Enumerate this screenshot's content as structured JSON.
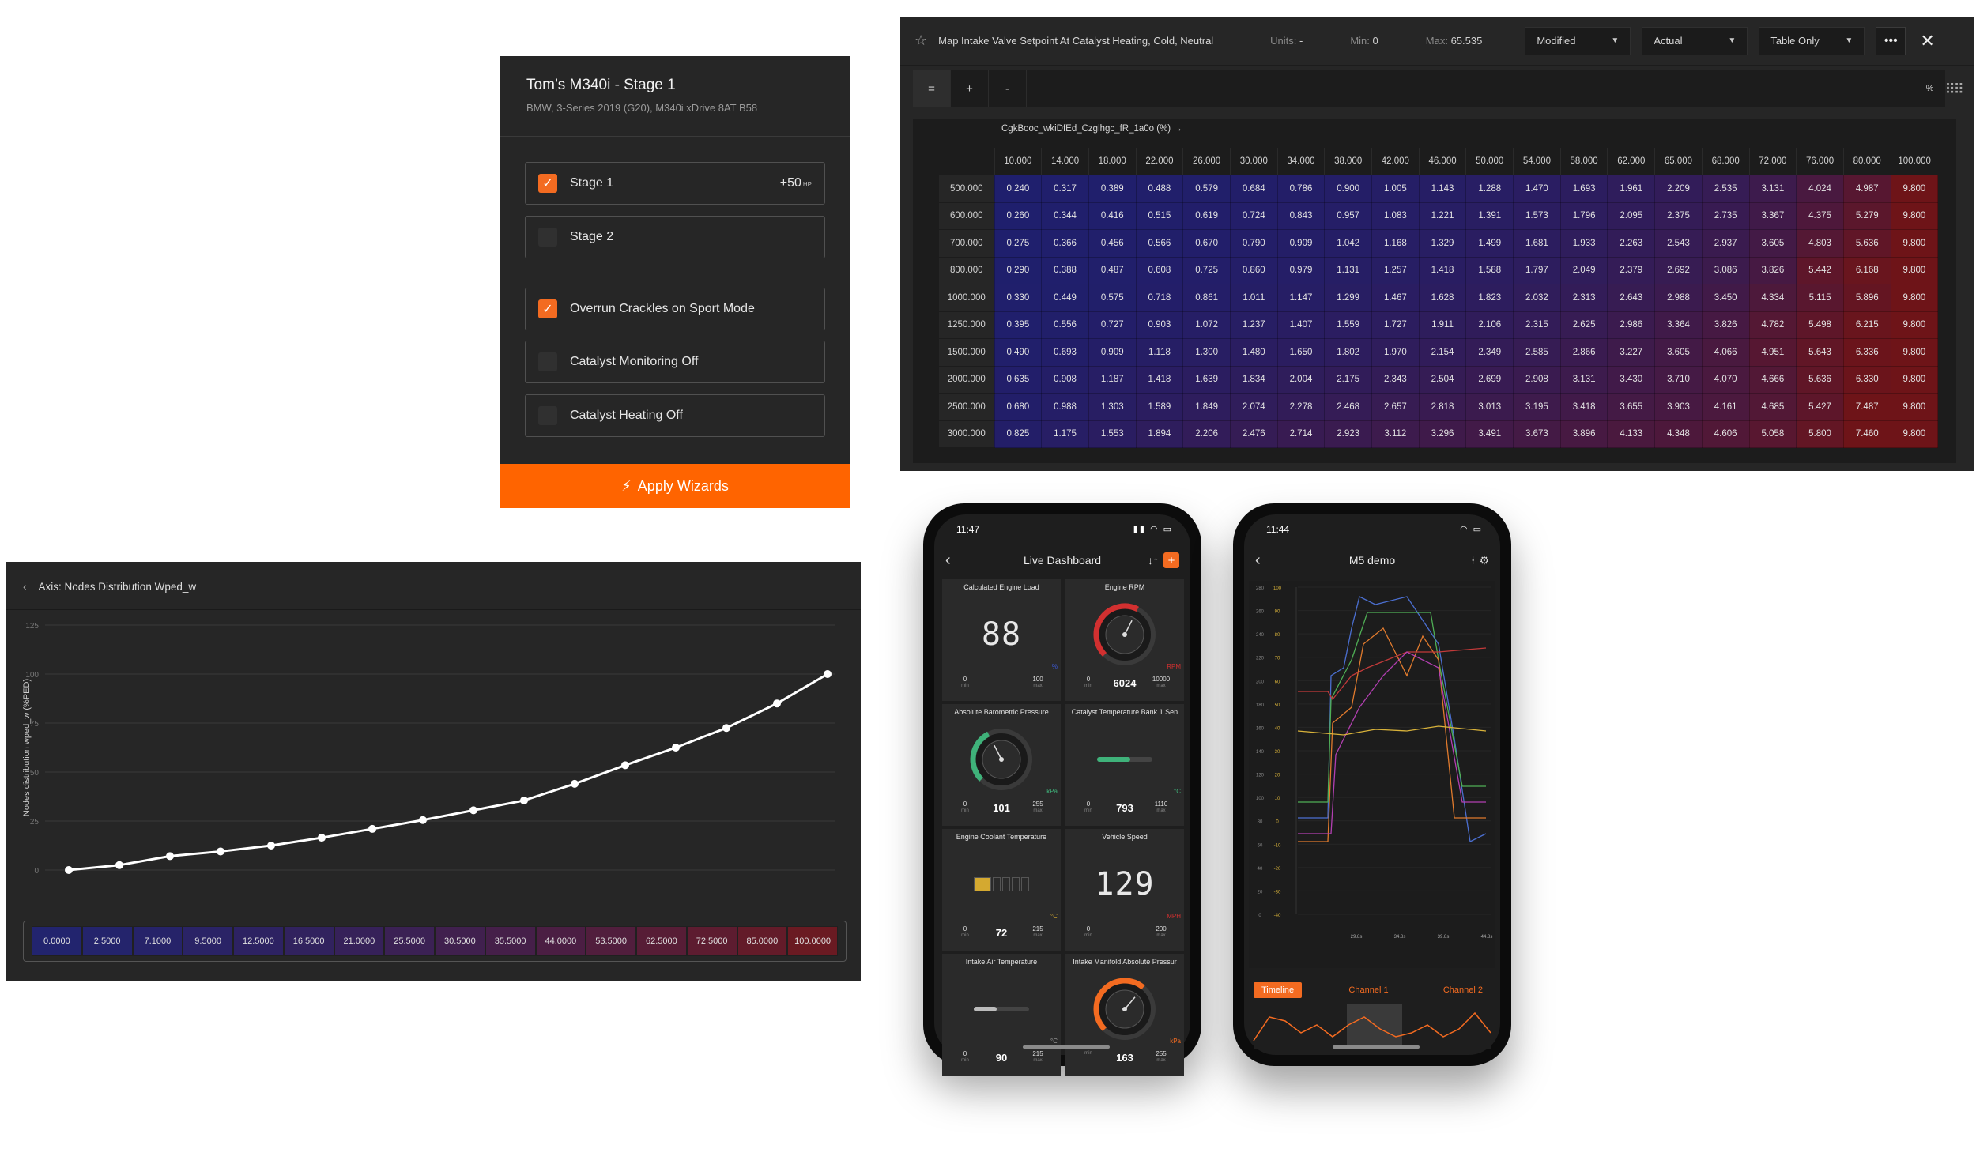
{
  "wizard": {
    "title": "Tom’s M340i - Stage 1",
    "subtitle": "BMW, 3-Series 2019 (G20), M340i xDrive 8AT B58",
    "options": [
      {
        "label": "Stage 1",
        "checked": true,
        "badge": "+50",
        "badge_unit": "HP"
      },
      {
        "label": "Stage 2",
        "checked": false
      },
      {
        "label": "Overrun Crackles on Sport Mode",
        "checked": true
      },
      {
        "label": "Catalyst Monitoring Off",
        "checked": false
      },
      {
        "label": "Catalyst Heating Off",
        "checked": false
      }
    ],
    "apply_label": "Apply Wizards",
    "accent": "#ff6400"
  },
  "map": {
    "title": "Map Intake Valve Setpoint At Catalyst Heating, Cold, Neutral",
    "units_label": "Units:",
    "units_value": "-",
    "min_label": "Min:",
    "min_value": "0",
    "max_label": "Max:",
    "max_value": "65.535",
    "dropdowns": [
      "Modified",
      "Actual",
      "Table Only"
    ],
    "tools": [
      "=",
      "+",
      "-"
    ],
    "pct_tool": "%",
    "axis_name": "CgkBooc_wkiDfEd_Czglhgc_fR_1a0o (%) →",
    "columns": [
      "10.000",
      "14.000",
      "18.000",
      "22.000",
      "26.000",
      "30.000",
      "34.000",
      "38.000",
      "42.000",
      "46.000",
      "50.000",
      "54.000",
      "58.000",
      "62.000",
      "65.000",
      "68.000",
      "72.000",
      "76.000",
      "80.000",
      "100.000"
    ],
    "rows": [
      {
        "label": "500.000",
        "values": [
          "0.240",
          "0.317",
          "0.389",
          "0.488",
          "0.579",
          "0.684",
          "0.786",
          "0.900",
          "1.005",
          "1.143",
          "1.288",
          "1.470",
          "1.693",
          "1.961",
          "2.209",
          "2.535",
          "3.131",
          "4.024",
          "4.987",
          "9.800"
        ]
      },
      {
        "label": "600.000",
        "values": [
          "0.260",
          "0.344",
          "0.416",
          "0.515",
          "0.619",
          "0.724",
          "0.843",
          "0.957",
          "1.083",
          "1.221",
          "1.391",
          "1.573",
          "1.796",
          "2.095",
          "2.375",
          "2.735",
          "3.367",
          "4.375",
          "5.279",
          "9.800"
        ]
      },
      {
        "label": "700.000",
        "values": [
          "0.275",
          "0.366",
          "0.456",
          "0.566",
          "0.670",
          "0.790",
          "0.909",
          "1.042",
          "1.168",
          "1.329",
          "1.499",
          "1.681",
          "1.933",
          "2.263",
          "2.543",
          "2.937",
          "3.605",
          "4.803",
          "5.636",
          "9.800"
        ]
      },
      {
        "label": "800.000",
        "values": [
          "0.290",
          "0.388",
          "0.487",
          "0.608",
          "0.725",
          "0.860",
          "0.979",
          "1.131",
          "1.257",
          "1.418",
          "1.588",
          "1.797",
          "2.049",
          "2.379",
          "2.692",
          "3.086",
          "3.826",
          "5.442",
          "6.168",
          "9.800"
        ]
      },
      {
        "label": "1000.000",
        "values": [
          "0.330",
          "0.449",
          "0.575",
          "0.718",
          "0.861",
          "1.011",
          "1.147",
          "1.299",
          "1.467",
          "1.628",
          "1.823",
          "2.032",
          "2.313",
          "2.643",
          "2.988",
          "3.450",
          "4.334",
          "5.115",
          "5.896",
          "9.800"
        ]
      },
      {
        "label": "1250.000",
        "values": [
          "0.395",
          "0.556",
          "0.727",
          "0.903",
          "1.072",
          "1.237",
          "1.407",
          "1.559",
          "1.727",
          "1.911",
          "2.106",
          "2.315",
          "2.625",
          "2.986",
          "3.364",
          "3.826",
          "4.782",
          "5.498",
          "6.215",
          "9.800"
        ]
      },
      {
        "label": "1500.000",
        "values": [
          "0.490",
          "0.693",
          "0.909",
          "1.118",
          "1.300",
          "1.480",
          "1.650",
          "1.802",
          "1.970",
          "2.154",
          "2.349",
          "2.585",
          "2.866",
          "3.227",
          "3.605",
          "4.066",
          "4.951",
          "5.643",
          "6.336",
          "9.800"
        ]
      },
      {
        "label": "2000.000",
        "values": [
          "0.635",
          "0.908",
          "1.187",
          "1.418",
          "1.639",
          "1.834",
          "2.004",
          "2.175",
          "2.343",
          "2.504",
          "2.699",
          "2.908",
          "3.131",
          "3.430",
          "3.710",
          "4.070",
          "4.666",
          "5.636",
          "6.330",
          "9.800"
        ]
      },
      {
        "label": "2500.000",
        "values": [
          "0.680",
          "0.988",
          "1.303",
          "1.589",
          "1.849",
          "2.074",
          "2.278",
          "2.468",
          "2.657",
          "2.818",
          "3.013",
          "3.195",
          "3.418",
          "3.655",
          "3.903",
          "4.161",
          "4.685",
          "5.427",
          "7.487",
          "9.800"
        ]
      },
      {
        "label": "3000.000",
        "values": [
          "0.825",
          "1.175",
          "1.553",
          "1.894",
          "2.206",
          "2.476",
          "2.714",
          "2.923",
          "3.112",
          "3.296",
          "3.491",
          "3.673",
          "3.896",
          "4.133",
          "4.348",
          "4.606",
          "5.058",
          "5.800",
          "7.460",
          "9.800"
        ]
      }
    ],
    "color_low": "#1e1f6e",
    "color_high": "#6e1418"
  },
  "axis_window": {
    "title": "Axis: Nodes Distribution Wped_w",
    "chart_data": {
      "type": "line",
      "ylabel": "Nodes distribution wped_w (%PED)",
      "xlabel": "",
      "ylim": [
        0,
        125
      ],
      "yticks": [
        "0",
        "25",
        "50",
        "75",
        "100",
        "125"
      ],
      "values": [
        0.0,
        2.5,
        7.1,
        9.5,
        12.5,
        16.5,
        21.0,
        25.5,
        30.5,
        35.5,
        44.0,
        53.5,
        62.5,
        72.5,
        85.0,
        100.0
      ],
      "grid": true
    },
    "strip": [
      "0.0000",
      "2.5000",
      "7.1000",
      "9.5000",
      "12.5000",
      "16.5000",
      "21.0000",
      "25.5000",
      "30.5000",
      "35.5000",
      "44.0000",
      "53.5000",
      "62.5000",
      "72.5000",
      "85.0000",
      "100.0000"
    ]
  },
  "phone_left": {
    "time": "11:47",
    "title": "Live Dashboard",
    "gauges": [
      {
        "title": "Calculated Engine Load",
        "kind": "digital",
        "display": "88",
        "unit": "%",
        "unit_color": "#3c5adc",
        "min": "0",
        "max": "100",
        "value": ""
      },
      {
        "title": "Engine RPM",
        "kind": "dial",
        "unit": "RPM",
        "unit_color": "#d23030",
        "arc_color": "#d23030",
        "level": 0.6,
        "min": "0",
        "max": "10000",
        "value": "6024"
      },
      {
        "title": "Absolute Barometric Pressure",
        "kind": "dial",
        "unit": "kPa",
        "unit_color": "#3fb27a",
        "arc_color": "#3fb27a",
        "level": 0.4,
        "min": "0",
        "max": "255",
        "value": "101"
      },
      {
        "title": "Catalyst Temperature Bank 1 Sen",
        "kind": "bar",
        "unit": "°C",
        "unit_color": "#3fb27a",
        "bar_color": "#3fb27a",
        "level": 0.6,
        "min": "0",
        "max": "1110",
        "value": "793"
      },
      {
        "title": "Engine Coolant Temperature",
        "kind": "blocks",
        "unit": "°C",
        "unit_color": "#d4a930",
        "block_color": "#d4a930",
        "level": 0.35,
        "min": "0",
        "max": "215",
        "value": "72"
      },
      {
        "title": "Vehicle Speed",
        "kind": "digital",
        "display": "129",
        "unit": "MPH",
        "unit_color": "#d23030",
        "min": "0",
        "max": "200",
        "value": ""
      },
      {
        "title": "Intake Air Temperature",
        "kind": "bar",
        "unit": "°C",
        "unit_color": "#9a9a9a",
        "bar_color": "#bbbbbb",
        "level": 0.42,
        "min": "0",
        "max": "215",
        "value": "90"
      },
      {
        "title": "Intake Manifold Absolute Pressur",
        "kind": "dial",
        "unit": "kPa",
        "unit_color": "#f36b21",
        "arc_color": "#f36b21",
        "level": 0.65,
        "min": "",
        "max": "255",
        "value": "163"
      }
    ],
    "min_label": "min",
    "max_label": "max"
  },
  "phone_right": {
    "time": "11:44",
    "title": "M5 demo",
    "tabs": [
      "Timeline",
      "Channel 1",
      "Channel 2"
    ],
    "chart_data": {
      "type": "line",
      "x_ticks": [
        "29.8s",
        "34.8s",
        "39.8s",
        "44.8s"
      ],
      "y_ticks_left": [
        "280",
        "260",
        "240",
        "220",
        "200",
        "180",
        "160",
        "140",
        "120",
        "100",
        "80",
        "60",
        "40",
        "20",
        "0"
      ],
      "y_ticks_mid": [
        "100",
        "90",
        "80",
        "70",
        "60",
        "50",
        "40",
        "30",
        "20",
        "10",
        "0",
        "-10",
        "-20",
        "-30",
        "-40"
      ],
      "series_colors": [
        "#4b6fd1",
        "#4fae55",
        "#e07a2d",
        "#c23a3a",
        "#b23fb1",
        "#d8b23a"
      ]
    }
  }
}
